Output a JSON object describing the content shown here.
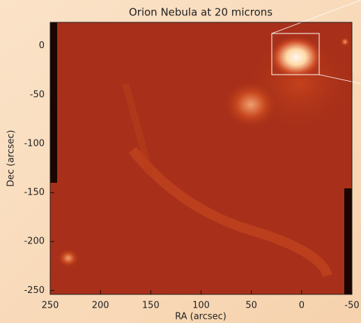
{
  "chart_data": {
    "type": "image",
    "title": "Orion Nebula at 20 microns",
    "x_label": "RA (arcsec)",
    "y_label": "Dec (arcsec)",
    "xlim": [
      250,
      -50
    ],
    "xticks": [
      250,
      200,
      150,
      100,
      50,
      0,
      -50
    ],
    "ylim": [
      -254,
      24
    ],
    "yticks": [
      0,
      -50,
      -100,
      -150,
      -200,
      -250
    ]
  }
}
